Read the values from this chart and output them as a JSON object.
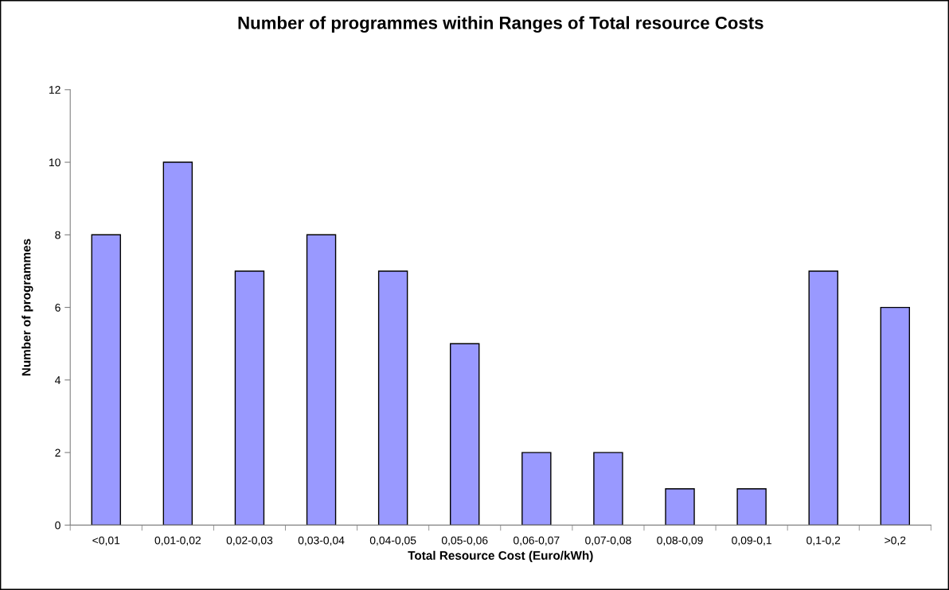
{
  "chart_data": {
    "type": "bar",
    "title": "Number of programmes within Ranges of Total resource Costs",
    "xlabel": "Total Resource Cost (Euro/kWh)",
    "ylabel": "Number of programmes",
    "categories": [
      "<0,01",
      "0,01-0,02",
      "0,02-0,03",
      "0,03-0,04",
      "0,04-0,05",
      "0,05-0,06",
      "0,06-0,07",
      "0,07-0,08",
      "0,08-0,09",
      "0,09-0,1",
      "0,1-0,2",
      ">0,2"
    ],
    "values": [
      8,
      10,
      7,
      8,
      7,
      5,
      2,
      2,
      1,
      1,
      7,
      6
    ],
    "color": "#9999ff",
    "ylim": [
      0,
      12
    ],
    "yticks": [
      0,
      2,
      4,
      6,
      8,
      10,
      12
    ],
    "grid": false,
    "legend": false
  }
}
